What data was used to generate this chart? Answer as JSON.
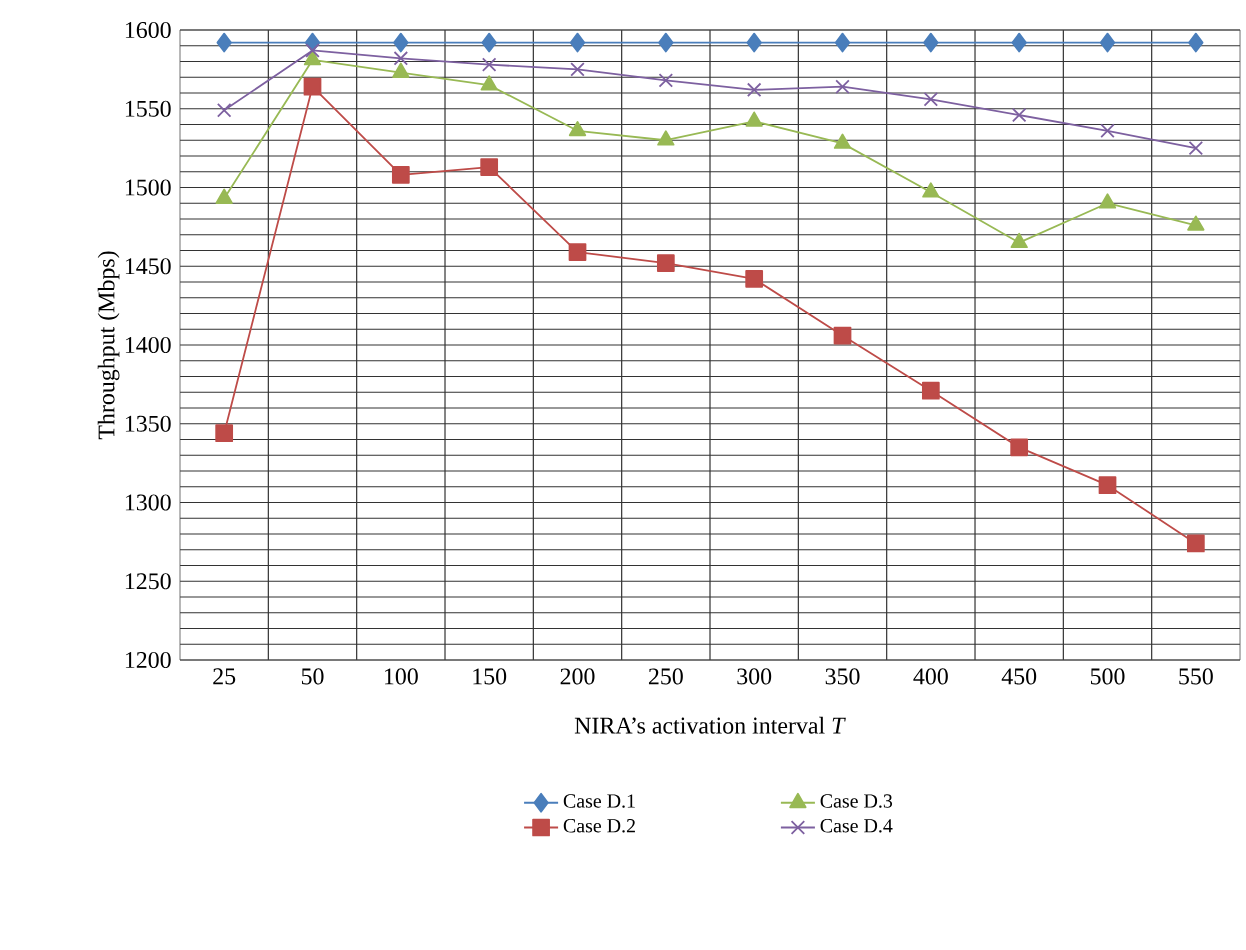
{
  "chart_data": {
    "type": "line",
    "xlabel": "NIRA’s activation interval *T*",
    "ylabel": "Throughput (Mbps)",
    "categories": [
      "25",
      "50",
      "100",
      "150",
      "200",
      "250",
      "300",
      "350",
      "400",
      "450",
      "500",
      "550"
    ],
    "ylim": [
      1200,
      1600
    ],
    "yticks": [
      1200,
      1250,
      1300,
      1350,
      1400,
      1450,
      1500,
      1550,
      1600
    ],
    "grid": true,
    "legend": "bottom",
    "series": [
      {
        "name": "Case D.1",
        "color": "#4a7ebb",
        "marker": "diamond",
        "values": [
          1592,
          1592,
          1592,
          1592,
          1592,
          1592,
          1592,
          1592,
          1592,
          1592,
          1592,
          1592
        ]
      },
      {
        "name": "Case D.2",
        "color": "#be4b48",
        "marker": "square",
        "values": [
          1344,
          1564,
          1508,
          1513,
          1459,
          1452,
          1442,
          1406,
          1371,
          1335,
          1311,
          1274
        ]
      },
      {
        "name": "Case D.3",
        "color": "#98b954",
        "marker": "triangle",
        "values": [
          1493,
          1581,
          1573,
          1565,
          1536,
          1530,
          1542,
          1528,
          1497,
          1465,
          1490,
          1476
        ]
      },
      {
        "name": "Case D.4",
        "color": "#7d60a0",
        "marker": "cross",
        "values": [
          1549,
          1587,
          1582,
          1578,
          1575,
          1568,
          1562,
          1564,
          1556,
          1546,
          1536,
          1525
        ]
      }
    ]
  }
}
